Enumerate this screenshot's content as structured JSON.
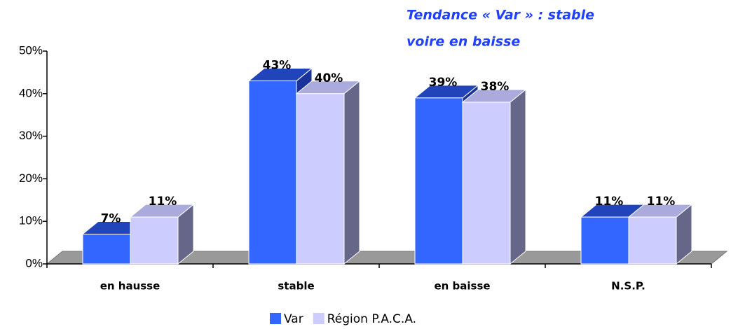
{
  "chart_data": {
    "type": "bar3d",
    "annotation": [
      "Tendance « Var » : stable",
      "voire en baisse"
    ],
    "categories": [
      "en hausse",
      "stable",
      "en baisse",
      "N.S.P."
    ],
    "series": [
      {
        "name": "Var",
        "color": "#3366ff",
        "values": [
          7,
          43,
          39,
          11
        ],
        "value_labels": [
          "7%",
          "43%",
          "39%",
          "11%"
        ]
      },
      {
        "name": "Région P.A.C.A.",
        "color": "#ccccff",
        "values": [
          11,
          40,
          38,
          11
        ],
        "value_labels": [
          "11%",
          "40%",
          "38%",
          "11%"
        ]
      }
    ],
    "ylim": [
      0,
      50
    ],
    "yticks": [
      {
        "value": 0,
        "label": "0%"
      },
      {
        "value": 10,
        "label": "10%"
      },
      {
        "value": 20,
        "label": "20%"
      },
      {
        "value": 30,
        "label": "30%"
      },
      {
        "value": 40,
        "label": "40%"
      },
      {
        "value": 50,
        "label": "50%"
      }
    ],
    "legend": "bottom"
  }
}
